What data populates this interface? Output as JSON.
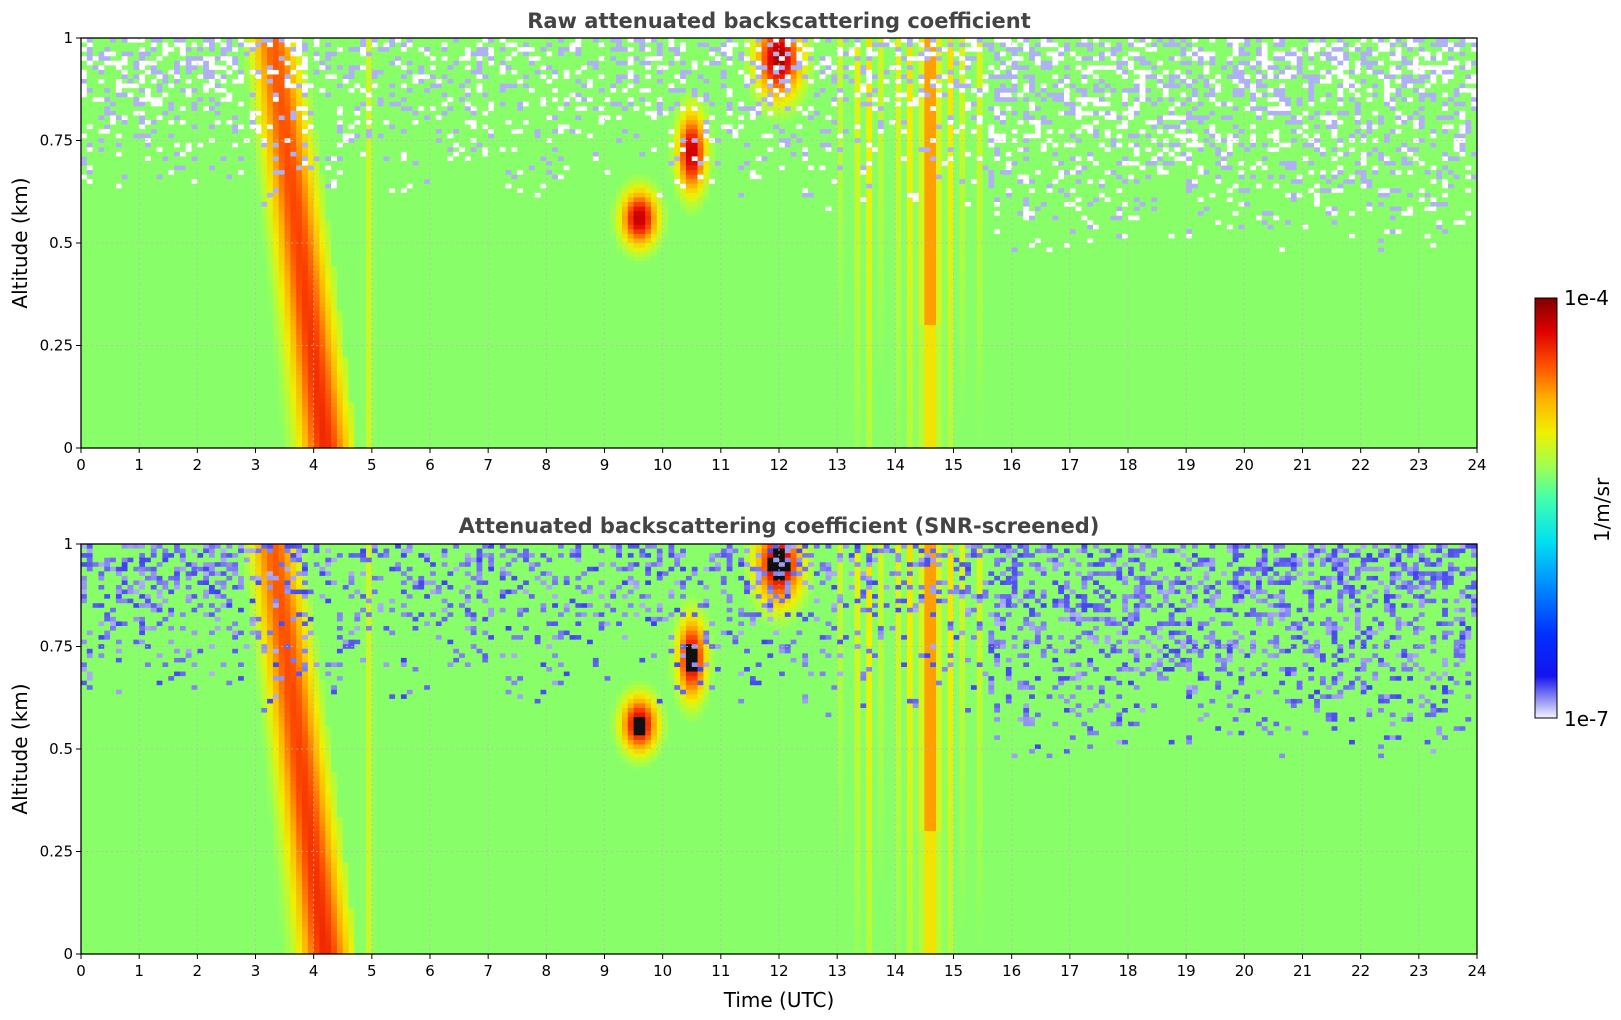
{
  "chart_data": [
    {
      "type": "heatmap",
      "title": "Raw attenuated backscattering coefficient",
      "xlabel": "",
      "ylabel": "Altitude (km)",
      "xlim": [
        0,
        24
      ],
      "ylim": [
        0,
        1
      ],
      "x_ticks": [
        0,
        1,
        2,
        3,
        4,
        5,
        6,
        7,
        8,
        9,
        10,
        11,
        12,
        13,
        14,
        15,
        16,
        17,
        18,
        19,
        20,
        21,
        22,
        23,
        24
      ],
      "y_ticks": [
        0,
        0.25,
        0.5,
        0.75,
        1
      ],
      "y_tick_labels": [
        "0",
        "0.25",
        "0.5",
        "0.75",
        "1"
      ],
      "grid": true,
      "screened": false
    },
    {
      "type": "heatmap",
      "title": "Attenuated backscattering coefficient (SNR-screened)",
      "xlabel": "Time (UTC)",
      "ylabel": "Altitude (km)",
      "xlim": [
        0,
        24
      ],
      "ylim": [
        0,
        1
      ],
      "x_ticks": [
        0,
        1,
        2,
        3,
        4,
        5,
        6,
        7,
        8,
        9,
        10,
        11,
        12,
        13,
        14,
        15,
        16,
        17,
        18,
        19,
        20,
        21,
        22,
        23,
        24
      ],
      "y_ticks": [
        0,
        0.25,
        0.5,
        0.75,
        1
      ],
      "y_tick_labels": [
        "0",
        "0.25",
        "0.5",
        "0.75",
        "1"
      ],
      "grid": true,
      "screened": true
    }
  ],
  "colorbar": {
    "label": "1/m/sr",
    "max_label": "1e-4",
    "min_label": "1e-7",
    "scale": "log",
    "range": [
      1e-07,
      0.0001
    ],
    "colormap": "jet"
  }
}
